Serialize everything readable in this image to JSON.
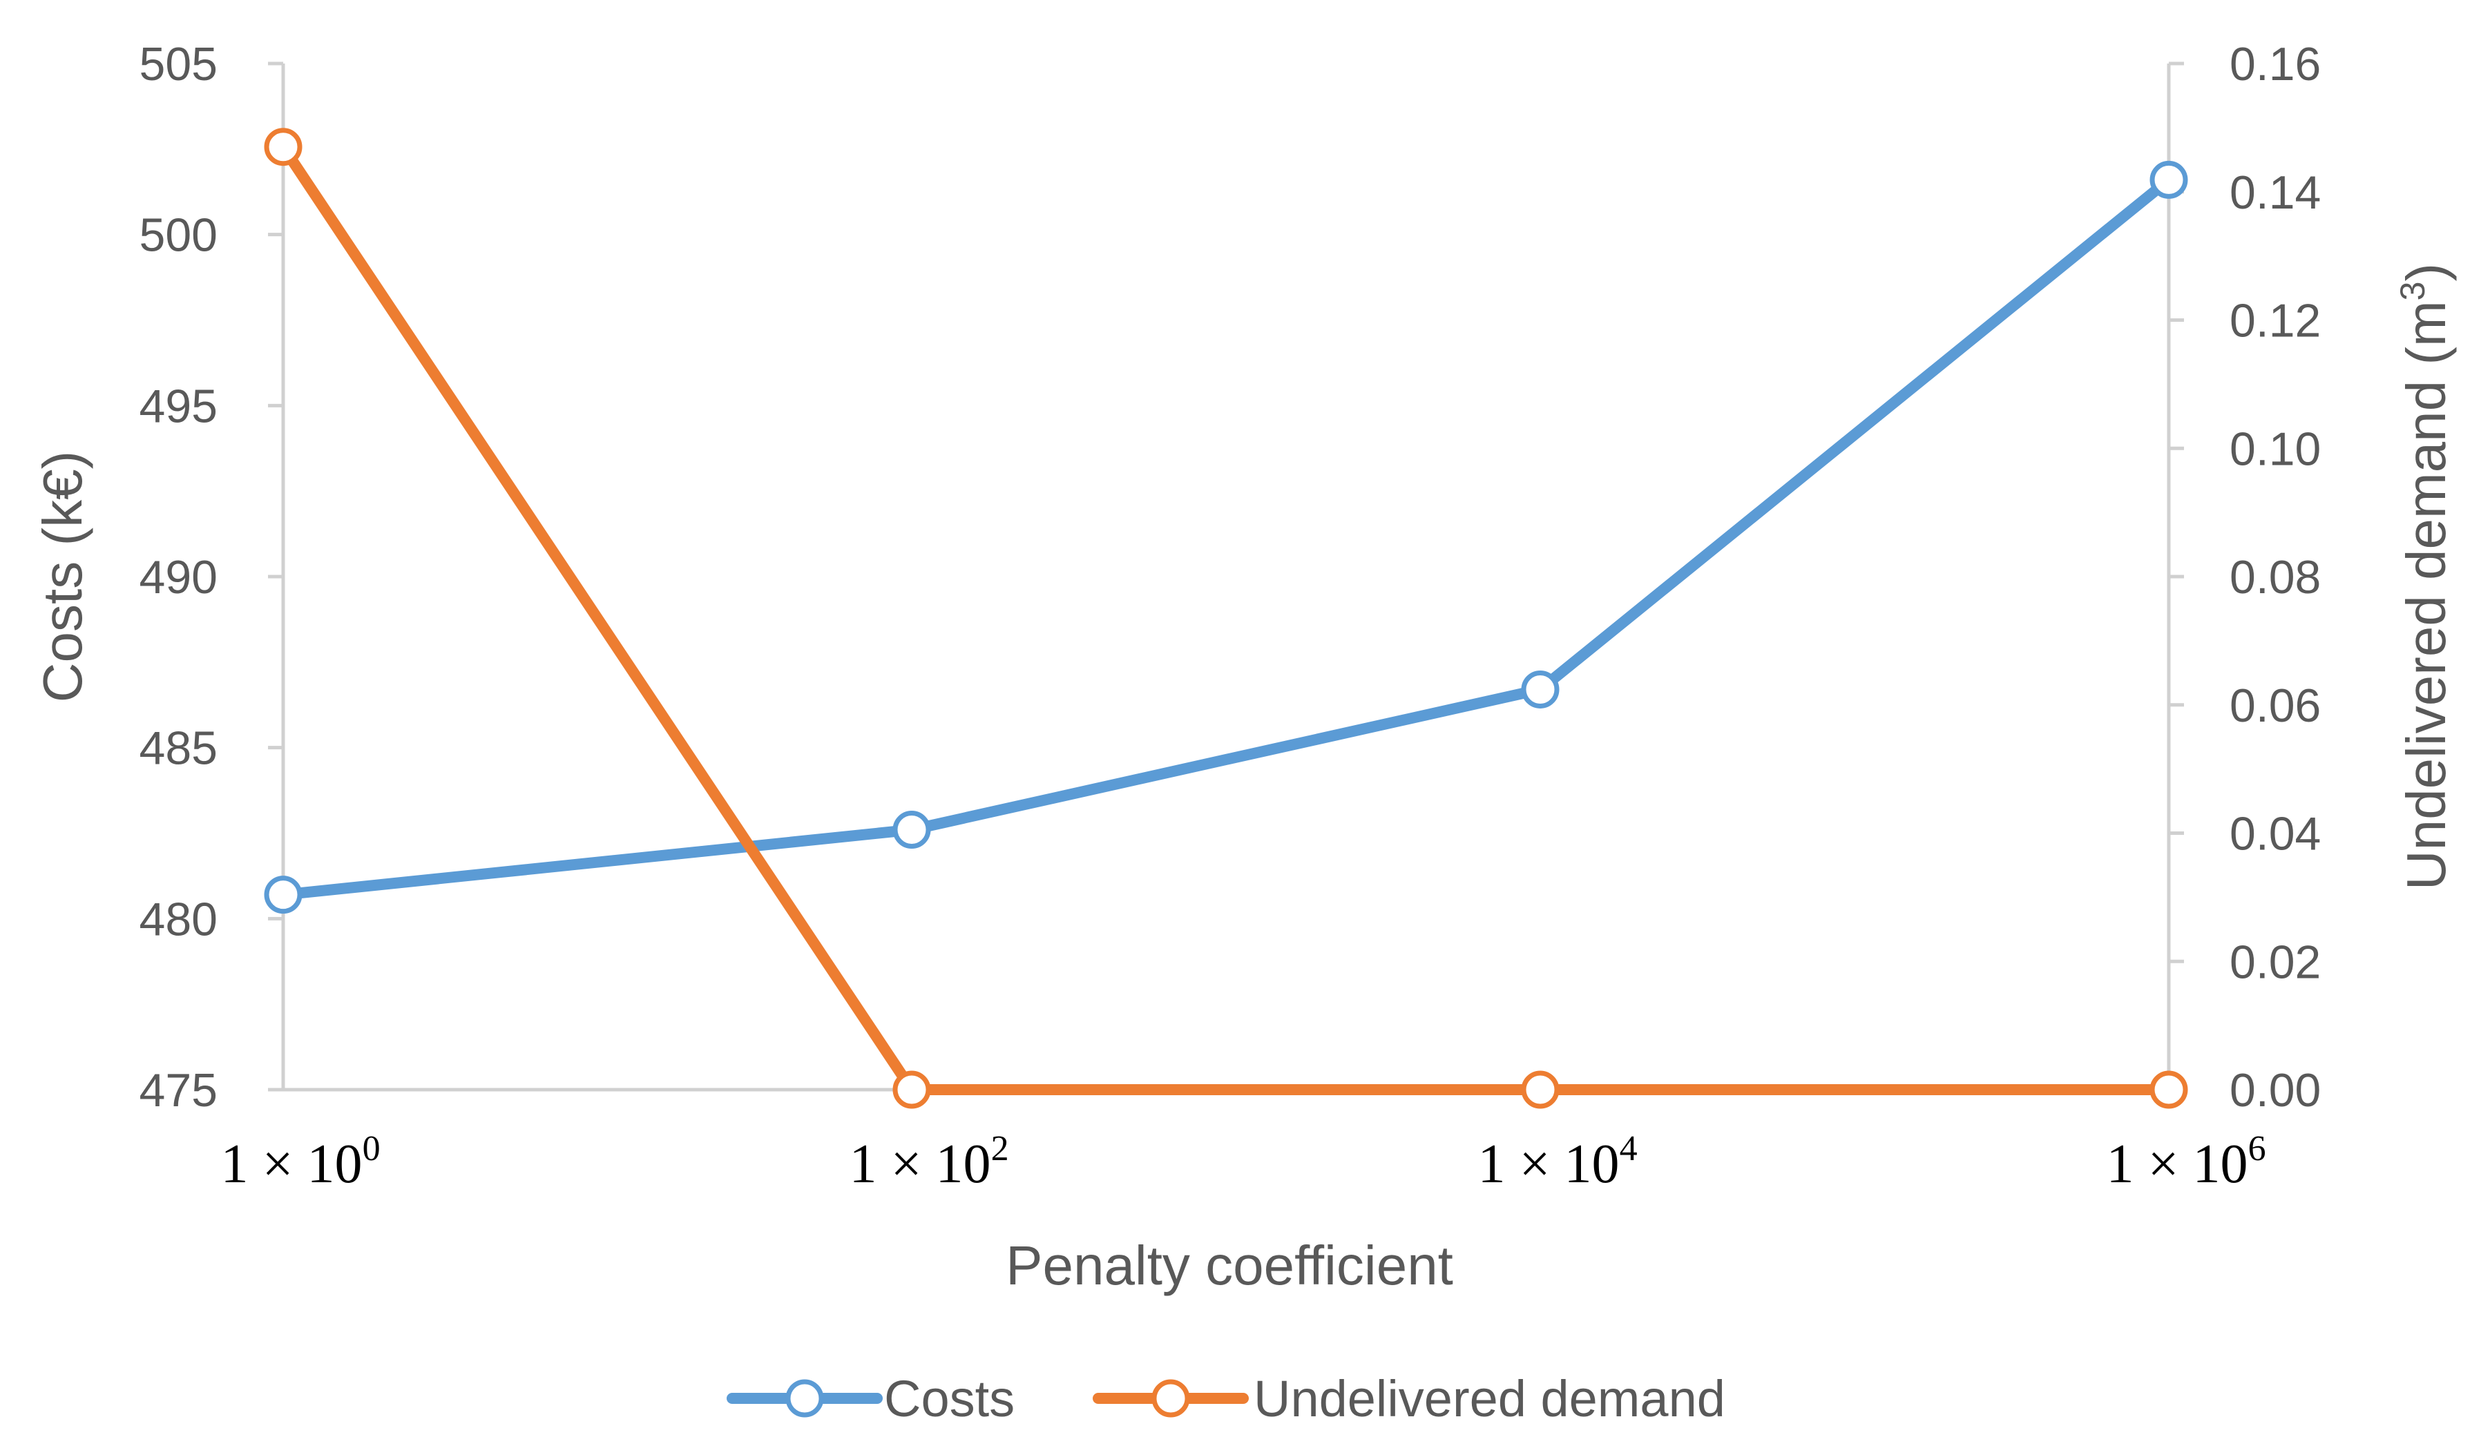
{
  "chart_data": {
    "type": "line",
    "x": [
      "1 × 10^0",
      "1 × 10^2",
      "1 × 10^4",
      "1 × 10^6"
    ],
    "x_ticks": [
      {
        "base": "1 × 10",
        "exp": "0"
      },
      {
        "base": "1 × 10",
        "exp": "2"
      },
      {
        "base": "1 × 10",
        "exp": "4"
      },
      {
        "base": "1 × 10",
        "exp": "6"
      }
    ],
    "xlabel": "Penalty coefficient",
    "ylabel": "Costs (k€)",
    "y2label_main": "Undelivered demand (m",
    "y2label_sup": "3",
    "y2label_close": ")",
    "ylim": [
      475,
      505
    ],
    "yticks": [
      "475",
      "480",
      "485",
      "490",
      "495",
      "500",
      "505"
    ],
    "y2lim": [
      0,
      0.16
    ],
    "y2ticks": [
      "0.00",
      "0.02",
      "0.04",
      "0.06",
      "0.08",
      "0.10",
      "0.12",
      "0.14",
      "0.16"
    ],
    "grid": false,
    "legend_position": "bottom",
    "series": [
      {
        "name": "Costs",
        "axis": "left",
        "values": [
          480.7,
          482.6,
          486.7,
          501.6
        ],
        "color": "#5B9BD5"
      },
      {
        "name": "Undelivered demand",
        "axis": "right",
        "values": [
          0.147,
          0.0,
          0.0,
          0.0
        ],
        "color": "#ED7D31"
      }
    ]
  }
}
